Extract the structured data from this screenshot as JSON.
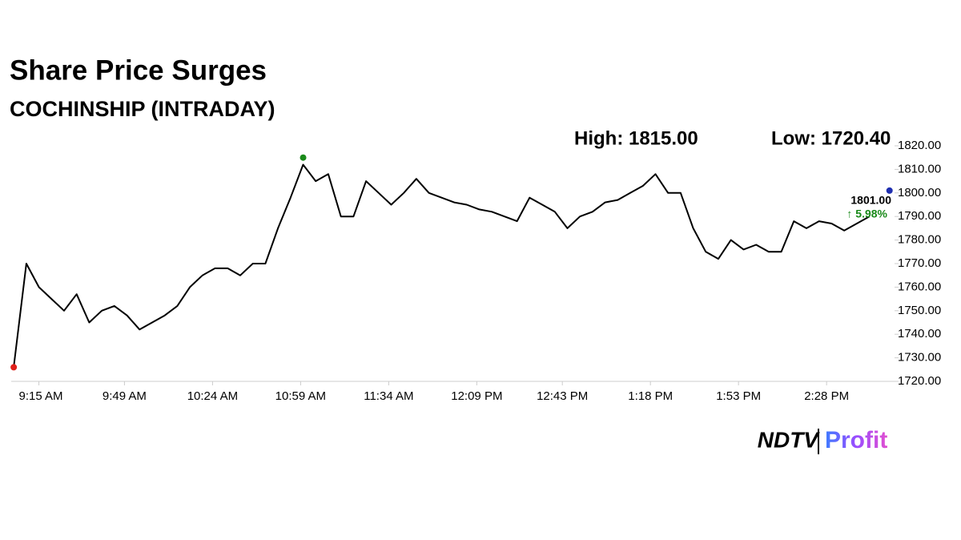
{
  "chart_data": {
    "type": "line",
    "title": "Share Price Surges",
    "subtitle": "COCHINSHIP (INTRADAY)",
    "stats": [
      "High: 1815.00",
      "Low: 1720.40"
    ],
    "x": [
      "9:05 AM",
      "9:10 AM",
      "9:15 AM",
      "9:20 AM",
      "9:25 AM",
      "9:30 AM",
      "9:35 AM",
      "9:40 AM",
      "9:45 AM",
      "9:50 AM",
      "9:55 AM",
      "10:00 AM",
      "10:05 AM",
      "10:10 AM",
      "10:15 AM",
      "10:20 AM",
      "10:25 AM",
      "10:30 AM",
      "10:35 AM",
      "10:40 AM",
      "10:45 AM",
      "10:50 AM",
      "10:55 AM",
      "11:00 AM",
      "11:05 AM",
      "11:10 AM",
      "11:15 AM",
      "11:20 AM",
      "11:25 AM",
      "11:30 AM",
      "11:35 AM",
      "11:40 AM",
      "11:45 AM",
      "11:50 AM",
      "11:55 AM",
      "12:00 PM",
      "12:05 PM",
      "12:10 PM",
      "12:15 PM",
      "12:20 PM",
      "12:25 PM",
      "12:30 PM",
      "12:35 PM",
      "12:40 PM",
      "12:45 PM",
      "12:50 PM",
      "12:55 PM",
      "1:00 PM",
      "1:05 PM",
      "1:10 PM",
      "1:15 PM",
      "1:20 PM",
      "1:25 PM",
      "1:30 PM",
      "1:35 PM",
      "1:40 PM",
      "1:45 PM",
      "1:50 PM",
      "1:55 PM",
      "2:00 PM",
      "2:05 PM",
      "2:10 PM",
      "2:15 PM",
      "2:20 PM",
      "2:25 PM",
      "2:30 PM",
      "2:35 PM",
      "2:40 PM",
      "2:45 PM"
    ],
    "series": [
      {
        "name": "COCHINSHIP",
        "color": "#000000",
        "values": [
          1726,
          1770,
          1760,
          1755,
          1750,
          1757,
          1745,
          1750,
          1752,
          1748,
          1742,
          1745,
          1748,
          1752,
          1760,
          1765,
          1768,
          1768,
          1765,
          1770,
          1770,
          1785,
          1798,
          1812,
          1805,
          1808,
          1790,
          1790,
          1805,
          1800,
          1795,
          1800,
          1806,
          1800,
          1798,
          1796,
          1795,
          1793,
          1792,
          1790,
          1788,
          1798,
          1795,
          1792,
          1785,
          1790,
          1792,
          1796,
          1797,
          1800,
          1803,
          1808,
          1800,
          1800,
          1785,
          1775,
          1772,
          1780,
          1776,
          1778,
          1775,
          1775,
          1788,
          1785,
          1788,
          1787,
          1784,
          1787,
          1790
        ]
      }
    ],
    "markers": [
      {
        "x": "9:05 AM",
        "value": 1726,
        "color": "#e0201b"
      },
      {
        "x": "11:00 AM",
        "value": 1815,
        "color": "#1a8a1a"
      },
      {
        "x": "2:53 PM",
        "value": 1801,
        "color": "#1f2fb0"
      }
    ],
    "last_price": "1801.00",
    "change": "↑ 5.98%",
    "change_color": "#1a8a1a",
    "xlim": [
      "9:04 AM",
      "2:55 PM"
    ],
    "xticks": [
      "9:15 AM",
      "9:49 AM",
      "10:24 AM",
      "10:59 AM",
      "11:34 AM",
      "12:09 PM",
      "12:43 PM",
      "1:18 PM",
      "1:53 PM",
      "2:28 PM"
    ],
    "ylim": [
      1720,
      1820
    ],
    "yticks": [
      {
        "value": 1720,
        "label": "1720.00"
      },
      {
        "value": 1730,
        "label": "1730.00"
      },
      {
        "value": 1740,
        "label": "1740.00"
      },
      {
        "value": 1750,
        "label": "1750.00"
      },
      {
        "value": 1760,
        "label": "1760.00"
      },
      {
        "value": 1770,
        "label": "1770.00"
      },
      {
        "value": 1780,
        "label": "1780.00"
      },
      {
        "value": 1790,
        "label": "1790.00"
      },
      {
        "value": 1800,
        "label": "1800.00"
      },
      {
        "value": 1810,
        "label": "1810.00"
      },
      {
        "value": 1820,
        "label": "1820.00"
      }
    ],
    "grid": false,
    "brand": {
      "name": "NDTV",
      "product": "Profit"
    }
  }
}
